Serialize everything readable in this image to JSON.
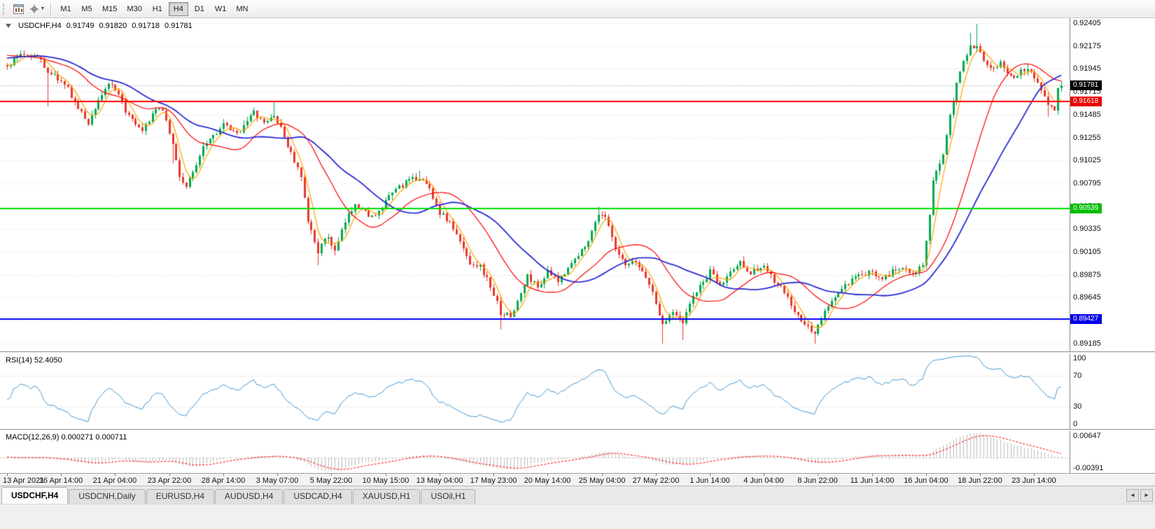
{
  "toolbar": {
    "timeframes": [
      {
        "label": "M1"
      },
      {
        "label": "M5"
      },
      {
        "label": "M15"
      },
      {
        "label": "M30"
      },
      {
        "label": "H1"
      },
      {
        "label": "H4",
        "active": true
      },
      {
        "label": "D1"
      },
      {
        "label": "W1"
      },
      {
        "label": "MN"
      }
    ]
  },
  "chart": {
    "symbol_label": "USDCHF,H4",
    "ohlc": {
      "open": "0.91749",
      "high": "0.91820",
      "low": "0.91718",
      "close": "0.91781"
    }
  },
  "tab_bar": {
    "tabs": [
      {
        "label": "USDCHF,H4",
        "active": true
      },
      {
        "label": "USDCNH,Daily"
      },
      {
        "label": "EURUSD,H4"
      },
      {
        "label": "AUDUSD,H4"
      },
      {
        "label": "USDCAD,H4"
      },
      {
        "label": "XAUUSD,H1"
      },
      {
        "label": "USOil,H1"
      }
    ],
    "scroll_left": "◄",
    "scroll_right": "►"
  },
  "chart_data": {
    "type": "candlestick",
    "symbol": "USDCHF",
    "period": "H4",
    "n_bars": 313,
    "bars_per_label": 16,
    "pre_bars": 40,
    "ylim": [
      0.89105,
      0.92455
    ],
    "y_ticks": [
      0.92405,
      0.92175,
      0.91945,
      0.91715,
      0.91485,
      0.91255,
      0.91025,
      0.90795,
      0.90565,
      0.90335,
      0.90105,
      0.89875,
      0.89645,
      0.89415,
      0.89185
    ],
    "x_labels": [
      "13 Apr 2021",
      "16 Apr 14:00",
      "21 Apr 04:00",
      "23 Apr 22:00",
      "28 Apr 14:00",
      "3 May 07:00",
      "5 May 22:00",
      "10 May 15:00",
      "13 May 04:00",
      "17 May 23:00",
      "20 May 14:00",
      "25 May 04:00",
      "27 May 22:00",
      "1 Jun 14:00",
      "4 Jun 04:00",
      "8 Jun 22:00",
      "11 Jun 14:00",
      "16 Jun 04:00",
      "18 Jun 22:00",
      "23 Jun 14:00"
    ],
    "current_price": 0.91781,
    "last_candle": {
      "open": 0.91749,
      "high": 0.9182,
      "low": 0.91718,
      "close": 0.91781
    },
    "horizontal_lines": [
      {
        "value": 0.91618,
        "color": "#FF0000",
        "tag_color": "#E80000"
      },
      {
        "value": 0.90539,
        "color": "#00E000",
        "tag_color": "#00BE00"
      },
      {
        "value": 0.89427,
        "color": "#0000FF",
        "tag_color": "#0000E6"
      }
    ],
    "overlays": [
      {
        "name": "MA fast",
        "period": 5,
        "color": "#FFA600",
        "width": 1.2
      },
      {
        "name": "MA mid",
        "period": 20,
        "color": "#FF0000",
        "width": 1.2
      },
      {
        "name": "MA slow",
        "period": 34,
        "color": "#2B2BD4",
        "width": 1.8
      }
    ],
    "indicators": [
      {
        "type": "RSI",
        "label": "RSI(14) 52.4050",
        "period": 14,
        "value": 52.405,
        "ticks": [
          100,
          70,
          30,
          0
        ],
        "levels": [
          70,
          30
        ],
        "range": [
          0,
          100
        ],
        "color": "#4698D0"
      },
      {
        "type": "MACD",
        "label": "MACD(12,26,9) 0.000271 0.000711",
        "fast": 12,
        "slow": 26,
        "signal": 9,
        "value": 0.000271,
        "signal_value": 0.000711,
        "ticks": [
          0.00647,
          -0.00391
        ],
        "histogram_color": "#BDBDBD",
        "signal_color": "#FF0000"
      }
    ],
    "colors": {
      "up": "#00A94F",
      "down": "#E8392D",
      "grid": "#E0E0E0",
      "bid_line": "#B0B0B0",
      "axis_text": "#111111"
    },
    "pre_waypoints": [
      [
        -40,
        0.9185
      ],
      [
        -25,
        0.9205
      ],
      [
        -10,
        0.9215
      ]
    ],
    "price_waypoints": [
      [
        0,
        0.9196
      ],
      [
        4,
        0.921
      ],
      [
        9,
        0.9207
      ],
      [
        12,
        0.9192
      ],
      [
        15,
        0.9185
      ],
      [
        18,
        0.9174
      ],
      [
        21,
        0.9155
      ],
      [
        24,
        0.914
      ],
      [
        27,
        0.9163
      ],
      [
        30,
        0.918
      ],
      [
        33,
        0.9167
      ],
      [
        36,
        0.9146
      ],
      [
        40,
        0.913
      ],
      [
        43,
        0.915
      ],
      [
        46,
        0.9155
      ],
      [
        49,
        0.9118
      ],
      [
        51,
        0.9086
      ],
      [
        53,
        0.9076
      ],
      [
        55,
        0.909
      ],
      [
        58,
        0.9118
      ],
      [
        61,
        0.9128
      ],
      [
        64,
        0.9138
      ],
      [
        68,
        0.9128
      ],
      [
        71,
        0.9144
      ],
      [
        73,
        0.915
      ],
      [
        76,
        0.9139
      ],
      [
        79,
        0.9148
      ],
      [
        81,
        0.9134
      ],
      [
        84,
        0.911
      ],
      [
        87,
        0.9085
      ],
      [
        89,
        0.904
      ],
      [
        92,
        0.9012
      ],
      [
        95,
        0.9026
      ],
      [
        97,
        0.901
      ],
      [
        100,
        0.904
      ],
      [
        103,
        0.906
      ],
      [
        106,
        0.905
      ],
      [
        109,
        0.9045
      ],
      [
        112,
        0.906
      ],
      [
        115,
        0.9074
      ],
      [
        118,
        0.908
      ],
      [
        122,
        0.9086
      ],
      [
        125,
        0.9074
      ],
      [
        128,
        0.905
      ],
      [
        131,
        0.904
      ],
      [
        134,
        0.902
      ],
      [
        137,
        0.9
      ],
      [
        140,
        0.8996
      ],
      [
        143,
        0.8976
      ],
      [
        146,
        0.895
      ],
      [
        149,
        0.8945
      ],
      [
        151,
        0.896
      ],
      [
        154,
        0.8986
      ],
      [
        157,
        0.8975
      ],
      [
        160,
        0.899
      ],
      [
        163,
        0.898
      ],
      [
        166,
        0.8996
      ],
      [
        169,
        0.9006
      ],
      [
        173,
        0.903
      ],
      [
        175,
        0.905
      ],
      [
        177,
        0.9046
      ],
      [
        180,
        0.9012
      ],
      [
        183,
        0.8996
      ],
      [
        186,
        0.9
      ],
      [
        189,
        0.8986
      ],
      [
        192,
        0.896
      ],
      [
        194,
        0.8936
      ],
      [
        197,
        0.8952
      ],
      [
        200,
        0.894
      ],
      [
        203,
        0.8966
      ],
      [
        206,
        0.898
      ],
      [
        208,
        0.899
      ],
      [
        211,
        0.8976
      ],
      [
        214,
        0.899
      ],
      [
        217,
        0.9
      ],
      [
        220,
        0.899
      ],
      [
        224,
        0.8996
      ],
      [
        227,
        0.898
      ],
      [
        230,
        0.897
      ],
      [
        233,
        0.895
      ],
      [
        236,
        0.8936
      ],
      [
        239,
        0.893
      ],
      [
        242,
        0.895
      ],
      [
        245,
        0.8966
      ],
      [
        248,
        0.8976
      ],
      [
        252,
        0.8986
      ],
      [
        256,
        0.899
      ],
      [
        259,
        0.8985
      ],
      [
        262,
        0.899
      ],
      [
        265,
        0.8996
      ],
      [
        268,
        0.899
      ],
      [
        271,
        0.8996
      ],
      [
        273,
        0.9045
      ],
      [
        274,
        0.908
      ],
      [
        277,
        0.911
      ],
      [
        279,
        0.915
      ],
      [
        281,
        0.918
      ],
      [
        283,
        0.9205
      ],
      [
        285,
        0.9215
      ],
      [
        287,
        0.922
      ],
      [
        289,
        0.9205
      ],
      [
        291,
        0.9196
      ],
      [
        294,
        0.92
      ],
      [
        296,
        0.919
      ],
      [
        298,
        0.9186
      ],
      [
        300,
        0.9192
      ],
      [
        302,
        0.9196
      ],
      [
        304,
        0.9186
      ],
      [
        306,
        0.9175
      ],
      [
        308,
        0.916
      ],
      [
        310,
        0.9155
      ],
      [
        312,
        0.91781
      ]
    ],
    "extreme_wicks": [
      {
        "bar": 12,
        "low": 0.9157
      },
      {
        "bar": 49,
        "low": 0.91
      },
      {
        "bar": 79,
        "high": 0.9162
      },
      {
        "bar": 92,
        "low": 0.8997
      },
      {
        "bar": 122,
        "high": 0.9092
      },
      {
        "bar": 146,
        "low": 0.8932
      },
      {
        "bar": 175,
        "high": 0.9056
      },
      {
        "bar": 194,
        "low": 0.8918
      },
      {
        "bar": 200,
        "low": 0.8922
      },
      {
        "bar": 239,
        "low": 0.8918
      },
      {
        "bar": 285,
        "high": 0.9231
      },
      {
        "bar": 287,
        "high": 0.924
      },
      {
        "bar": 308,
        "low": 0.9146
      }
    ]
  }
}
